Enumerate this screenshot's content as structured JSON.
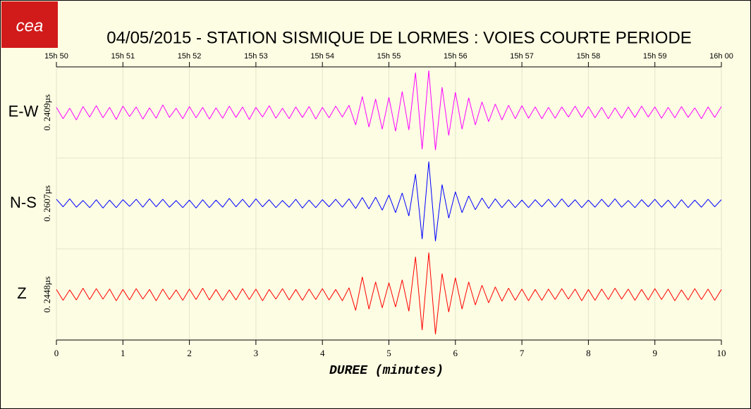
{
  "logo": "cea",
  "chart_data": {
    "type": "line",
    "title": "04/05/2015  -  STATION SISMIQUE DE LORMES : VOIES COURTE PERIODE",
    "xlabel": "DUREE (minutes)",
    "xlim": [
      0,
      10
    ],
    "xticks": [
      0,
      1,
      2,
      3,
      4,
      5,
      6,
      7,
      8,
      9,
      10
    ],
    "x2ticks": [
      {
        "value": 0,
        "label": "15h 50"
      },
      {
        "value": 1,
        "label": "15h 51"
      },
      {
        "value": 2,
        "label": "15h 52"
      },
      {
        "value": 3,
        "label": "15h 53"
      },
      {
        "value": 4,
        "label": "15h 54"
      },
      {
        "value": 5,
        "label": "15h 55"
      },
      {
        "value": 6,
        "label": "15h 56"
      },
      {
        "value": 7,
        "label": "15h 57"
      },
      {
        "value": 8,
        "label": "15h 58"
      },
      {
        "value": 9,
        "label": "15h 59"
      },
      {
        "value": 10,
        "label": "16h 00"
      }
    ],
    "ylim": [
      -1,
      1
    ],
    "grid": true,
    "x": [
      0,
      0.1,
      0.2,
      0.3,
      0.4,
      0.5,
      0.6,
      0.7,
      0.8,
      0.9,
      1,
      1.1,
      1.2,
      1.3,
      1.4,
      1.5,
      1.6,
      1.7,
      1.8,
      1.9,
      2,
      2.1,
      2.2,
      2.3,
      2.4,
      2.5,
      2.6,
      2.7,
      2.8,
      2.9,
      3,
      3.1,
      3.2,
      3.3,
      3.4,
      3.5,
      3.6,
      3.7,
      3.8,
      3.9,
      4,
      4.1,
      4.2,
      4.3,
      4.4,
      4.5,
      4.6,
      4.7,
      4.8,
      4.9,
      5,
      5.1,
      5.2,
      5.3,
      5.4,
      5.5,
      5.6,
      5.7,
      5.8,
      5.9,
      6,
      6.1,
      6.2,
      6.3,
      6.4,
      6.5,
      6.6,
      6.7,
      6.8,
      6.9,
      7,
      7.1,
      7.2,
      7.3,
      7.4,
      7.5,
      7.6,
      7.7,
      7.8,
      7.9,
      8,
      8.1,
      8.2,
      8.3,
      8.4,
      8.5,
      8.6,
      8.7,
      8.8,
      8.9,
      9,
      9.1,
      9.2,
      9.3,
      9.4,
      9.5,
      9.6,
      9.7,
      9.8,
      9.9,
      10
    ],
    "series": [
      {
        "name": "E-W",
        "color": "#ff00ff",
        "scale_label": "0. 2409µs",
        "values": [
          0.12,
          -0.15,
          0.1,
          -0.18,
          0.14,
          -0.11,
          0.16,
          -0.13,
          0.12,
          -0.17,
          0.15,
          -0.1,
          0.13,
          -0.16,
          0.11,
          -0.14,
          0.18,
          -0.12,
          0.1,
          -0.15,
          0.14,
          -0.13,
          0.12,
          -0.16,
          0.11,
          -0.14,
          0.15,
          -0.12,
          0.13,
          -0.17,
          0.12,
          -0.11,
          0.16,
          -0.14,
          0.1,
          -0.15,
          0.13,
          -0.12,
          0.14,
          -0.16,
          0.12,
          -0.13,
          0.15,
          -0.11,
          0.17,
          -0.3,
          0.38,
          -0.35,
          0.32,
          -0.4,
          0.36,
          -0.45,
          0.5,
          -0.42,
          0.95,
          -0.88,
          1.0,
          -0.9,
          0.6,
          -0.55,
          0.48,
          -0.4,
          0.35,
          -0.3,
          0.25,
          -0.22,
          0.2,
          -0.18,
          0.17,
          -0.15,
          0.16,
          -0.14,
          0.13,
          -0.15,
          0.12,
          -0.14,
          0.13,
          -0.11,
          0.15,
          -0.12,
          0.14,
          -0.13,
          0.12,
          -0.15,
          0.11,
          -0.14,
          0.13,
          -0.12,
          0.15,
          -0.11,
          0.13,
          -0.14,
          0.12,
          -0.13,
          0.14,
          -0.12,
          0.11,
          -0.15,
          0.13,
          -0.12,
          0.14
        ]
      },
      {
        "name": "N-S",
        "color": "#0000ff",
        "scale_label": "0. 2607µs",
        "values": [
          0.1,
          -0.08,
          0.11,
          -0.09,
          0.07,
          -0.1,
          0.09,
          -0.11,
          0.08,
          -0.1,
          0.09,
          -0.07,
          0.1,
          -0.09,
          0.11,
          -0.08,
          0.1,
          -0.09,
          0.07,
          -0.1,
          0.08,
          -0.11,
          0.09,
          -0.1,
          0.08,
          -0.09,
          0.12,
          -0.08,
          0.1,
          -0.09,
          0.11,
          -0.08,
          0.09,
          -0.1,
          0.07,
          -0.09,
          0.1,
          -0.11,
          0.08,
          -0.1,
          0.09,
          -0.08,
          0.1,
          -0.09,
          0.11,
          -0.12,
          0.14,
          -0.13,
          0.15,
          -0.16,
          0.2,
          -0.22,
          0.25,
          -0.3,
          0.7,
          -0.85,
          1.0,
          -0.9,
          0.45,
          -0.35,
          0.28,
          -0.22,
          0.18,
          -0.15,
          0.13,
          -0.12,
          0.11,
          -0.1,
          0.09,
          -0.1,
          0.08,
          -0.1,
          0.09,
          -0.08,
          0.1,
          -0.09,
          0.11,
          -0.08,
          0.09,
          -0.1,
          0.08,
          -0.09,
          0.1,
          -0.08,
          0.11,
          -0.09,
          0.07,
          -0.1,
          0.09,
          -0.08,
          0.1,
          -0.09,
          0.08,
          -0.11,
          0.09,
          -0.1,
          0.08,
          -0.09,
          0.1,
          -0.08,
          0.09
        ]
      },
      {
        "name": "Z",
        "color": "#ff0000",
        "scale_label": "0. 2448µs",
        "values": [
          0.12,
          -0.14,
          0.11,
          -0.13,
          0.15,
          -0.12,
          0.14,
          -0.11,
          0.13,
          -0.15,
          0.12,
          -0.13,
          0.14,
          -0.11,
          0.12,
          -0.15,
          0.13,
          -0.12,
          0.11,
          -0.14,
          0.13,
          -0.12,
          0.15,
          -0.13,
          0.12,
          -0.14,
          0.11,
          -0.13,
          0.14,
          -0.12,
          0.13,
          -0.15,
          0.12,
          -0.11,
          0.14,
          -0.13,
          0.12,
          -0.14,
          0.13,
          -0.12,
          0.14,
          -0.13,
          0.12,
          -0.15,
          0.16,
          -0.38,
          0.42,
          -0.35,
          0.3,
          -0.32,
          0.28,
          -0.3,
          0.35,
          -0.4,
          0.9,
          -0.85,
          1.0,
          -0.95,
          0.5,
          -0.42,
          0.4,
          -0.35,
          0.3,
          -0.25,
          0.22,
          -0.2,
          0.18,
          -0.16,
          0.15,
          -0.14,
          0.13,
          -0.15,
          0.12,
          -0.14,
          0.13,
          -0.12,
          0.14,
          -0.11,
          0.13,
          -0.15,
          0.12,
          -0.14,
          0.13,
          -0.12,
          0.15,
          -0.11,
          0.13,
          -0.14,
          0.12,
          -0.13,
          0.14,
          -0.12,
          0.13,
          -0.15,
          0.11,
          -0.13,
          0.14,
          -0.12,
          0.13,
          -0.14,
          0.12
        ]
      }
    ]
  }
}
